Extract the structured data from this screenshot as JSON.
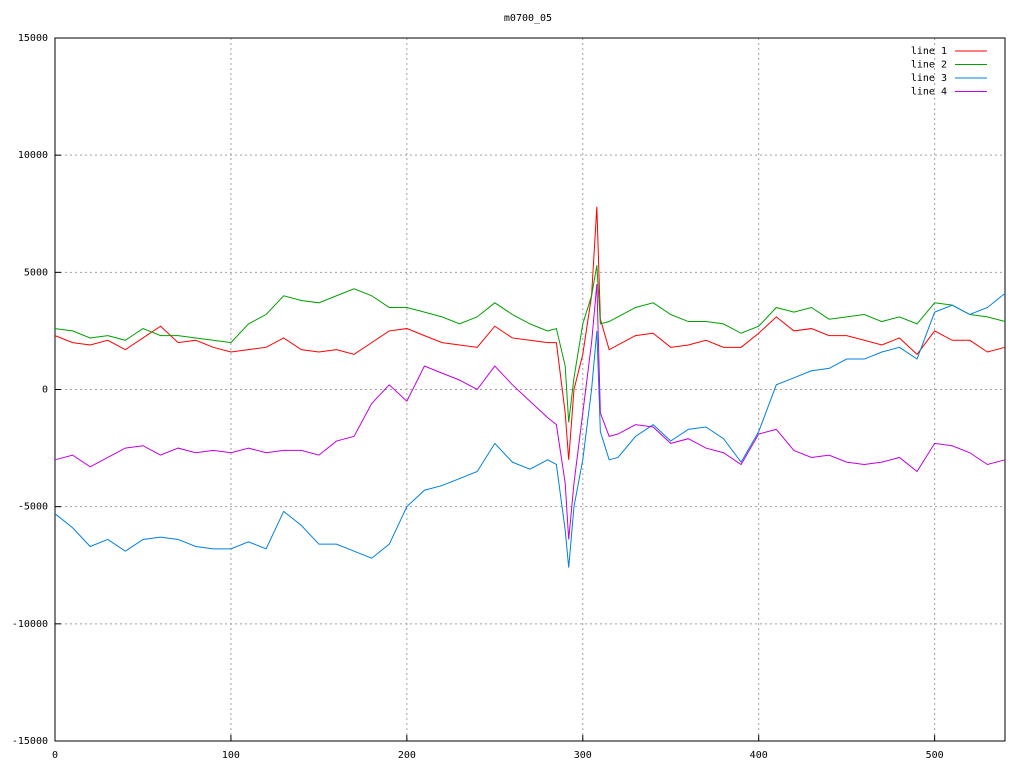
{
  "chart_data": {
    "type": "line",
    "title": "m0700_05",
    "x": [
      0,
      10,
      20,
      30,
      40,
      50,
      60,
      70,
      80,
      90,
      100,
      110,
      120,
      130,
      140,
      150,
      160,
      170,
      180,
      190,
      200,
      210,
      220,
      230,
      240,
      250,
      260,
      270,
      280,
      285,
      290,
      292,
      295,
      300,
      305,
      308,
      310,
      315,
      320,
      330,
      340,
      350,
      360,
      370,
      380,
      390,
      400,
      410,
      420,
      430,
      440,
      450,
      460,
      470,
      480,
      490,
      500,
      510,
      520,
      530,
      540
    ],
    "series": [
      {
        "name": "line 1",
        "color": "#ff0000",
        "values": [
          2300,
          2000,
          1900,
          2100,
          1700,
          2200,
          2700,
          2000,
          2100,
          1800,
          1600,
          1700,
          1800,
          2200,
          1700,
          1600,
          1700,
          1500,
          2000,
          2500,
          2600,
          2300,
          2000,
          1900,
          1800,
          2700,
          2200,
          2100,
          2000,
          2000,
          -1000,
          -3000,
          0,
          1500,
          4000,
          7800,
          3000,
          1700,
          1900,
          2300,
          2400,
          1800,
          1900,
          2100,
          1800,
          1800,
          2400,
          3100,
          2500,
          2600,
          2300,
          2300,
          2100,
          1900,
          2200,
          1500,
          2500,
          2100,
          2100,
          1600,
          1800
        ]
      },
      {
        "name": "line 2",
        "color": "#00a000",
        "values": [
          2600,
          2500,
          2200,
          2300,
          2100,
          2600,
          2300,
          2300,
          2200,
          2100,
          2000,
          2800,
          3200,
          4000,
          3800,
          3700,
          4000,
          4300,
          4000,
          3500,
          3500,
          3300,
          3100,
          2800,
          3100,
          3700,
          3200,
          2800,
          2500,
          2600,
          1000,
          -1400,
          500,
          2800,
          4000,
          5300,
          2800,
          2900,
          3100,
          3500,
          3700,
          3200,
          2900,
          2900,
          2800,
          2400,
          2700,
          3500,
          3300,
          3500,
          3000,
          3100,
          3200,
          2900,
          3100,
          2800,
          3700,
          3600,
          3200,
          3100,
          2900
        ]
      },
      {
        "name": "line 3",
        "color": "#0080e0",
        "values": [
          -5300,
          -5900,
          -6700,
          -6400,
          -6900,
          -6400,
          -6300,
          -6400,
          -6700,
          -6800,
          -6800,
          -6500,
          -6800,
          -5200,
          -5800,
          -6600,
          -6600,
          -6900,
          -7200,
          -6600,
          -5000,
          -4300,
          -4100,
          -3800,
          -3500,
          -2300,
          -3100,
          -3400,
          -3000,
          -3200,
          -6000,
          -7600,
          -5000,
          -3000,
          0,
          2500,
          -1800,
          -3000,
          -2900,
          -2000,
          -1500,
          -2200,
          -1700,
          -1600,
          -2100,
          -3100,
          -1800,
          200,
          500,
          800,
          900,
          1300,
          1300,
          1600,
          1800,
          1300,
          3300,
          3600,
          3200,
          3500,
          4100
        ]
      },
      {
        "name": "line 4",
        "color": "#c000e0",
        "values": [
          -3000,
          -2800,
          -3300,
          -2900,
          -2500,
          -2400,
          -2800,
          -2500,
          -2700,
          -2600,
          -2700,
          -2500,
          -2700,
          -2600,
          -2600,
          -2800,
          -2200,
          -2000,
          -600,
          200,
          -500,
          1000,
          700,
          400,
          0,
          1000,
          200,
          -500,
          -1200,
          -1500,
          -4000,
          -6400,
          -4000,
          -1000,
          2000,
          4500,
          -1000,
          -2000,
          -1900,
          -1500,
          -1600,
          -2300,
          -2100,
          -2500,
          -2700,
          -3200,
          -1900,
          -1700,
          -2600,
          -2900,
          -2800,
          -3100,
          -3200,
          -3100,
          -2900,
          -3500,
          -2300,
          -2400,
          -2700,
          -3200,
          -3000
        ]
      }
    ],
    "xlim": [
      0,
      540
    ],
    "xticks": [
      0,
      100,
      200,
      300,
      400,
      500
    ],
    "ylim": [
      -15000,
      15000
    ],
    "yticks": [
      -15000,
      -10000,
      -5000,
      0,
      5000,
      10000,
      15000
    ],
    "grid": true,
    "legend": "top-right"
  }
}
